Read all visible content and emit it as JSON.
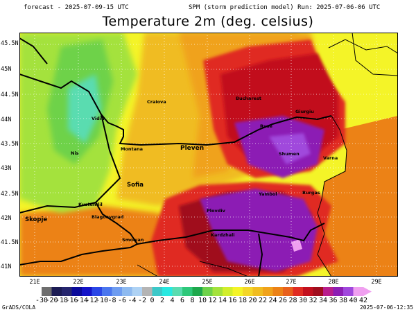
{
  "header": {
    "left": "forecast - 2025-07-09-15 UTC",
    "right": "SPM (storm prediction model) Run: 2025-07-06-06 UTC"
  },
  "title": "Temperature 2m (deg. celsius)",
  "lat_labels": [
    "45.5N",
    "45N",
    "44.5N",
    "44N",
    "43.5N",
    "43N",
    "42.5N",
    "42N",
    "41.5N",
    "41N"
  ],
  "lon_labels": [
    "21E",
    "22E",
    "23E",
    "24E",
    "25E",
    "26E",
    "27E",
    "28E",
    "29E"
  ],
  "cities": [
    {
      "name": "Craiova"
    },
    {
      "name": "Vidin"
    },
    {
      "name": "Bucharest"
    },
    {
      "name": "Giurgiu"
    },
    {
      "name": "Ruse"
    },
    {
      "name": "Nis"
    },
    {
      "name": "Montana"
    },
    {
      "name": "Pleven"
    },
    {
      "name": "Shumen"
    },
    {
      "name": "Varna"
    },
    {
      "name": "Sofia"
    },
    {
      "name": "Yambol"
    },
    {
      "name": "Burgas"
    },
    {
      "name": "Kustendil"
    },
    {
      "name": "Plovdiv"
    },
    {
      "name": "Skopje"
    },
    {
      "name": "Blagoevgrad"
    },
    {
      "name": "Smolyan"
    },
    {
      "name": "Kardzhali"
    }
  ],
  "colorbar": {
    "labels": [
      "-30",
      "-20",
      "-18",
      "-16",
      "-14",
      "-12",
      "-10",
      "-8",
      "-6",
      "-4",
      "-2",
      "0",
      "2",
      "4",
      "6",
      "8",
      "10",
      "12",
      "14",
      "16",
      "18",
      "20",
      "22",
      "24",
      "26",
      "28",
      "30",
      "32",
      "34",
      "36",
      "38",
      "40",
      "42"
    ],
    "colors": [
      "#6e6e6e",
      "#1c1c54",
      "#26266e",
      "#0a0a9a",
      "#1414c8",
      "#2a46e6",
      "#4a76ee",
      "#6e9cf0",
      "#8ebaf0",
      "#aed2f4",
      "#b4b4b4",
      "#3cc8c8",
      "#28e8e0",
      "#5adcb0",
      "#2ec87a",
      "#1ea84c",
      "#6ed24a",
      "#a4e23c",
      "#d2ee2c",
      "#f4f428",
      "#f4d628",
      "#f0bc20",
      "#f0a21a",
      "#ec8216",
      "#e8601c",
      "#e02c22",
      "#c2101e",
      "#a00e1e",
      "#b81e8c",
      "#8c1eb4",
      "#a048dc",
      "#f0a0f0"
    ],
    "overflow_color": "#f0a0f0"
  },
  "colors": {
    "yellow": "#f4f428",
    "gold": "#f0bc20",
    "orange": "#f0a21a",
    "dark_orange": "#ec8216",
    "red": "#e02c22",
    "dark_red": "#c2101e",
    "maroon": "#a00e1e",
    "purple": "#8c1eb4",
    "light_purple": "#a048dc",
    "pink": "#f0a0f0",
    "green": "#6ed24a",
    "teal": "#5adcb0",
    "lime": "#a4e23c",
    "sea": "#ec8216"
  },
  "footer": {
    "left": "GrADS/COLA",
    "right": "2025-07-06-12:35"
  }
}
